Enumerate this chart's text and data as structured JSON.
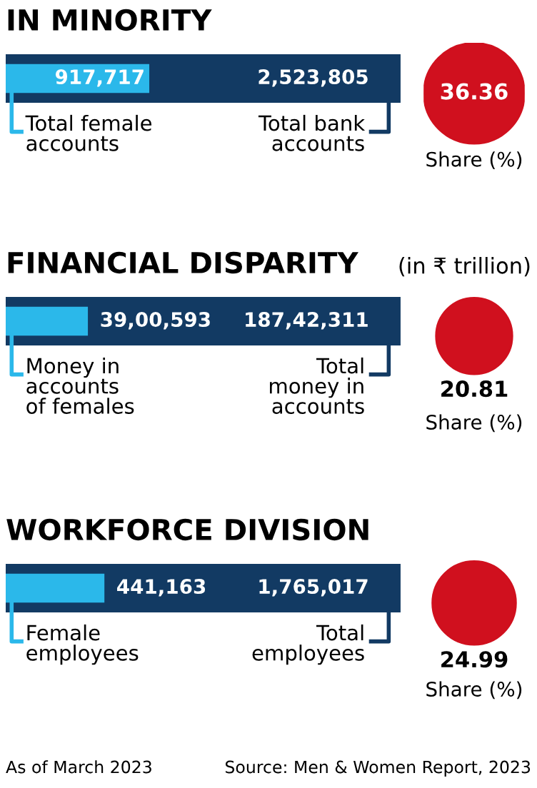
{
  "chart_data": [
    {
      "type": "bar",
      "orientation": "horizontal",
      "title": "IN MINORITY",
      "categories": [
        null
      ],
      "series": [
        {
          "name": "Total bank\naccounts",
          "color": "#123a63",
          "values": [
            2523805
          ],
          "value_labels": [
            "2,523,805"
          ]
        },
        {
          "name": "Total female\naccounts",
          "color": "#2bb8ea",
          "values": [
            917717
          ],
          "value_labels": [
            "917,717"
          ]
        }
      ]
    },
    {
      "type": "other",
      "categories": [
        "Share (%)"
      ],
      "values": [
        36.36
      ],
      "value_labels": [
        "36.36"
      ],
      "color": "#d0101e"
    },
    {
      "type": "bar",
      "orientation": "horizontal",
      "title": "FINANCIAL DISPARITY",
      "subtitle": "(in ₹ trillion)",
      "categories": [
        null
      ],
      "series": [
        {
          "name": "Total\nmoney in\naccounts",
          "color": "#123a63",
          "values": [
            18742311
          ],
          "value_labels": [
            "187,42,311"
          ]
        },
        {
          "name": "Money in\naccounts\nof females",
          "color": "#2bb8ea",
          "values": [
            3900593
          ],
          "value_labels": [
            "39,00,593"
          ]
        }
      ]
    },
    {
      "type": "other",
      "categories": [
        "Share (%)"
      ],
      "values": [
        20.81
      ],
      "value_labels": [
        "20.81"
      ],
      "color": "#d0101e"
    },
    {
      "type": "bar",
      "orientation": "horizontal",
      "title": "WORKFORCE DIVISION",
      "categories": [
        null
      ],
      "series": [
        {
          "name": "Total\nemployees",
          "color": "#123a63",
          "values": [
            1765017
          ],
          "value_labels": [
            "1,765,017"
          ]
        },
        {
          "name": "Female\nemployees",
          "color": "#2bb8ea",
          "values": [
            441163
          ],
          "value_labels": [
            "441,163"
          ]
        }
      ],
      "annotations": [
        "As of March 2023",
        "Source: Men & Women Report, 2023"
      ]
    },
    {
      "type": "other",
      "categories": [
        "Share (%)"
      ],
      "values": [
        24.99
      ],
      "value_labels": [
        "24.99"
      ],
      "color": "#d0101e"
    }
  ]
}
